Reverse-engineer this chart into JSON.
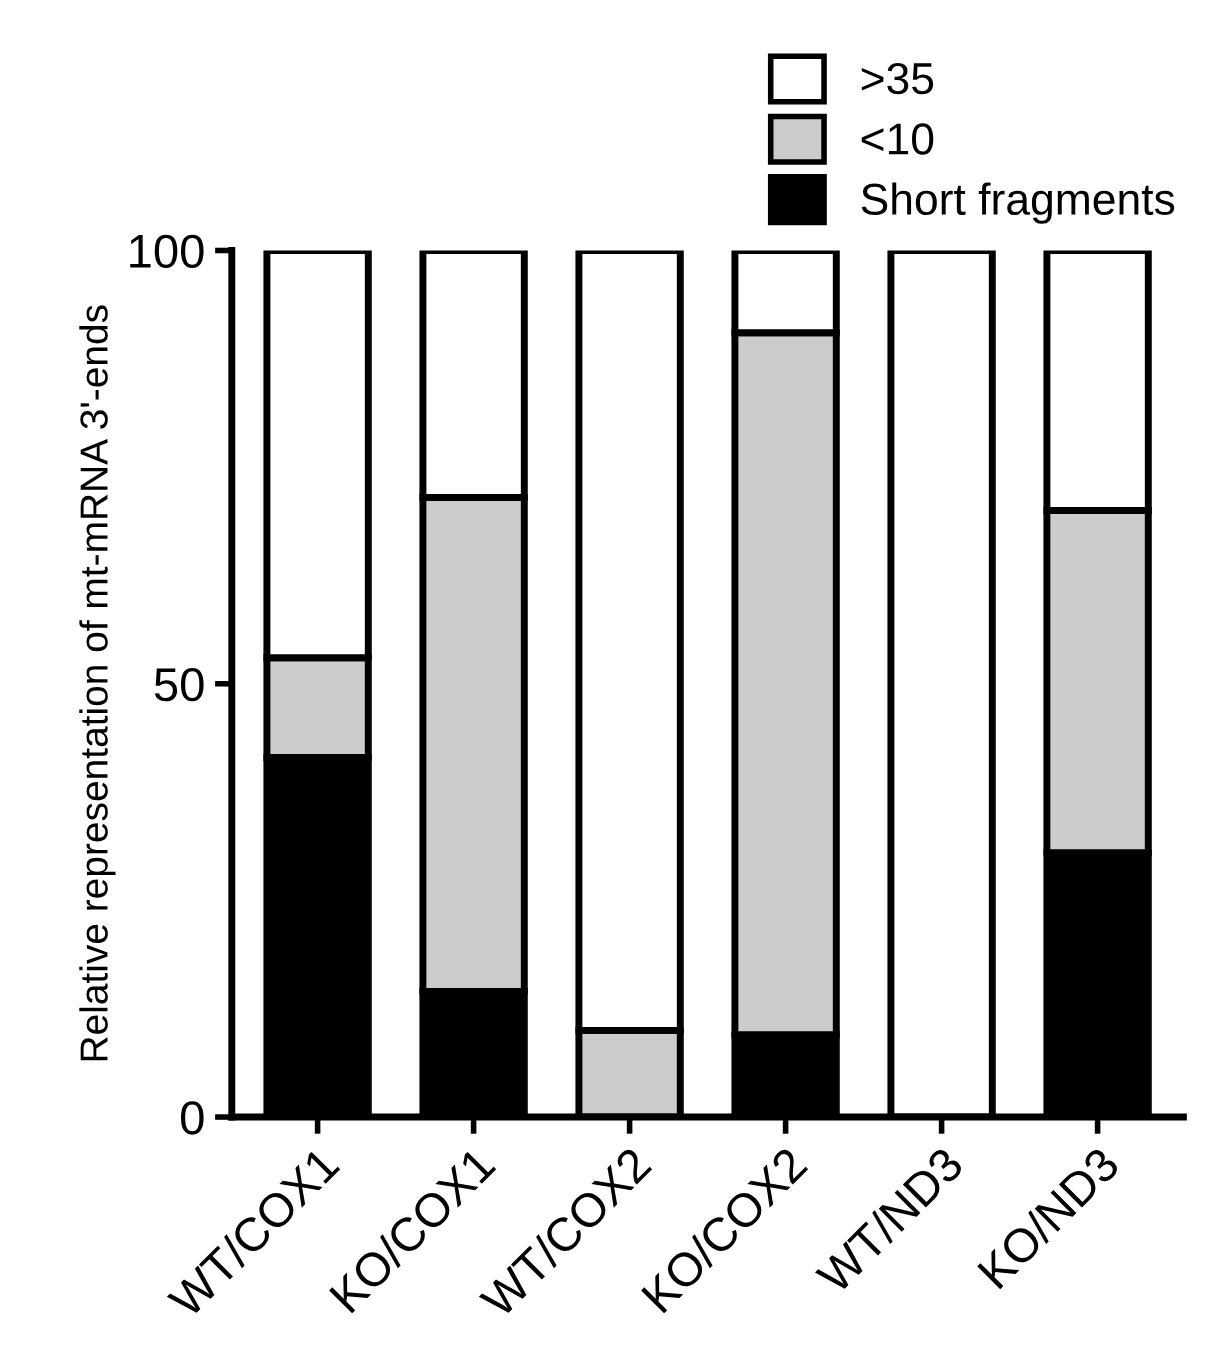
{
  "chart_data": {
    "type": "bar",
    "stacked": true,
    "ylabel": "Relative representation of mt-mRNA 3'-ends",
    "categories": [
      "WT/COX1",
      "KO/COX1",
      "WT/COX2",
      "KO/COX2",
      "WT/ND3",
      "KO/ND3"
    ],
    "series": [
      {
        "name": "Short fragments",
        "color": "#000000",
        "values": [
          41.5,
          14.5,
          0,
          9.5,
          0,
          30.5
        ]
      },
      {
        "name": "<10",
        "color": "#cccccc",
        "values": [
          11.5,
          57,
          10,
          81,
          0,
          39.5
        ]
      },
      {
        "name": ">35",
        "color": "#ffffff",
        "values": [
          47,
          28.5,
          90,
          9.5,
          100,
          30
        ]
      }
    ],
    "ylim": [
      0,
      100
    ],
    "yticks": [
      0,
      50,
      100
    ],
    "grid": false,
    "legend": "top right"
  }
}
